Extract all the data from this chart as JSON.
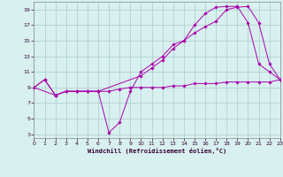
{
  "xlabel": "Windchill (Refroidissement éolien,°C)",
  "background_color": "#d8f0f0",
  "grid_color": "#aacccc",
  "line_color": "#aa00aa",
  "xlim": [
    0,
    23
  ],
  "ylim": [
    2.5,
    20
  ],
  "xticks": [
    0,
    1,
    2,
    3,
    4,
    5,
    6,
    7,
    8,
    9,
    10,
    11,
    12,
    13,
    14,
    15,
    16,
    17,
    18,
    19,
    20,
    21,
    22,
    23
  ],
  "yticks": [
    3,
    5,
    7,
    9,
    11,
    13,
    15,
    17,
    19
  ],
  "curve1_x": [
    0,
    1,
    2,
    3,
    4,
    5,
    6,
    7,
    8,
    9,
    10,
    11,
    12,
    13,
    14,
    15,
    16,
    17,
    18,
    19,
    20,
    21,
    22,
    23
  ],
  "curve1_y": [
    9,
    10,
    8,
    8.5,
    8.5,
    8.5,
    8.5,
    8.5,
    8.8,
    9,
    9,
    9,
    9,
    9.2,
    9.2,
    9.5,
    9.5,
    9.5,
    9.7,
    9.7,
    9.7,
    9.7,
    9.7,
    10
  ],
  "curve2_x": [
    0,
    1,
    2,
    3,
    4,
    5,
    6,
    7,
    8,
    9,
    10,
    11,
    12,
    13,
    14,
    15,
    16,
    17,
    18,
    19,
    20,
    21,
    22,
    23
  ],
  "curve2_y": [
    9,
    10,
    8,
    8.5,
    8.5,
    8.5,
    8.5,
    3.2,
    4.5,
    8.5,
    11,
    12,
    13,
    14.5,
    15,
    17,
    18.5,
    19.3,
    19.4,
    19.4,
    17.3,
    12,
    11,
    10
  ],
  "curve3_x": [
    0,
    2,
    3,
    4,
    5,
    6,
    10,
    11,
    12,
    13,
    14,
    15,
    16,
    17,
    18,
    19,
    20,
    21,
    22,
    23
  ],
  "curve3_y": [
    9,
    8,
    8.5,
    8.5,
    8.5,
    8.5,
    10.5,
    11.5,
    12.5,
    14,
    15,
    16,
    16.8,
    17.5,
    19.0,
    19.3,
    19.4,
    17.3,
    12,
    10
  ]
}
